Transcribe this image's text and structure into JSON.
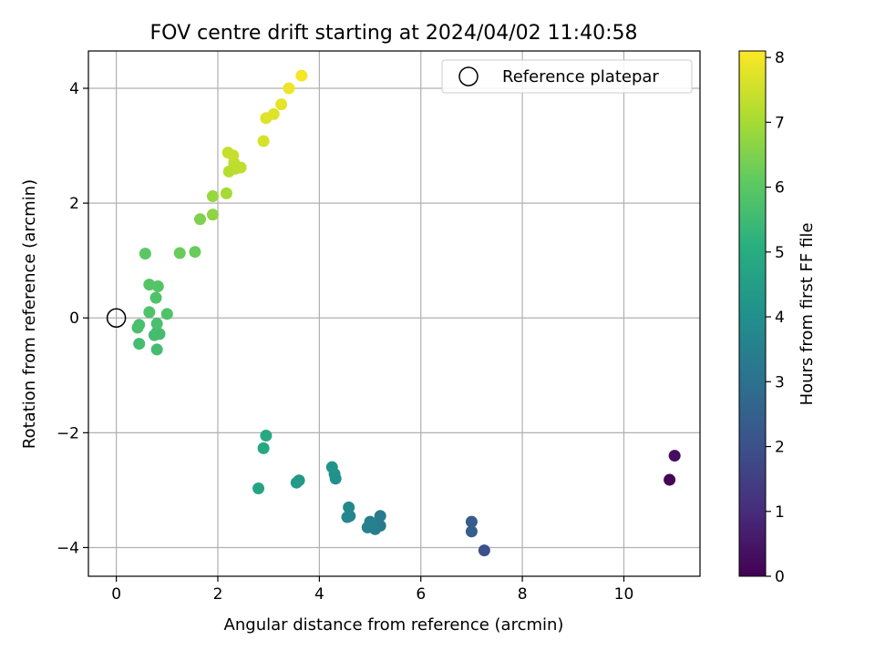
{
  "chart_data": {
    "type": "scatter",
    "title": "FOV centre drift starting at 2024/04/02 11:40:58",
    "xlabel": "Angular distance from reference (arcmin)",
    "ylabel": "Rotation from reference (arcmin)",
    "xlim": [
      -0.55,
      11.5
    ],
    "ylim": [
      -4.5,
      4.65
    ],
    "xticks": [
      0,
      2,
      4,
      6,
      8,
      10
    ],
    "yticks": [
      -4,
      -2,
      0,
      2,
      4
    ],
    "grid": true,
    "legend_placement": "top-right",
    "legend": [
      {
        "label": "Reference platepar",
        "marker": "open-circle"
      }
    ],
    "reference_point": {
      "x": 0,
      "y": 0
    },
    "colorbar": {
      "label": "Hours from first FF file",
      "range": [
        0,
        8.1
      ],
      "ticks": [
        0,
        1,
        2,
        3,
        4,
        5,
        6,
        7,
        8
      ],
      "colormap": "viridis"
    },
    "series": [
      {
        "points": [
          {
            "x": 10.9,
            "y": -2.82,
            "c": 0.1
          },
          {
            "x": 11.0,
            "y": -2.4,
            "c": 0.3
          },
          {
            "x": 7.25,
            "y": -4.05,
            "c": 2.0
          },
          {
            "x": 7.0,
            "y": -3.55,
            "c": 2.3
          },
          {
            "x": 7.0,
            "y": -3.72,
            "c": 2.4
          },
          {
            "x": 5.2,
            "y": -3.45,
            "c": 3.3
          },
          {
            "x": 5.2,
            "y": -3.62,
            "c": 3.3
          },
          {
            "x": 5.1,
            "y": -3.68,
            "c": 3.4
          },
          {
            "x": 5.0,
            "y": -3.55,
            "c": 3.4
          },
          {
            "x": 4.95,
            "y": -3.65,
            "c": 3.5
          },
          {
            "x": 5.05,
            "y": -3.6,
            "c": 3.5
          },
          {
            "x": 4.6,
            "y": -3.45,
            "c": 3.6
          },
          {
            "x": 4.55,
            "y": -3.47,
            "c": 3.7
          },
          {
            "x": 4.58,
            "y": -3.3,
            "c": 3.8
          },
          {
            "x": 4.32,
            "y": -2.8,
            "c": 4.0
          },
          {
            "x": 4.3,
            "y": -2.72,
            "c": 4.1
          },
          {
            "x": 4.25,
            "y": -2.6,
            "c": 4.2
          },
          {
            "x": 3.6,
            "y": -2.83,
            "c": 4.3
          },
          {
            "x": 3.55,
            "y": -2.87,
            "c": 4.4
          },
          {
            "x": 2.8,
            "y": -2.97,
            "c": 4.7
          },
          {
            "x": 2.9,
            "y": -2.27,
            "c": 4.8
          },
          {
            "x": 2.95,
            "y": -2.05,
            "c": 4.9
          },
          {
            "x": 0.8,
            "y": -0.55,
            "c": 5.6
          },
          {
            "x": 0.45,
            "y": -0.45,
            "c": 5.6
          },
          {
            "x": 0.75,
            "y": -0.3,
            "c": 5.6
          },
          {
            "x": 0.85,
            "y": -0.28,
            "c": 5.6
          },
          {
            "x": 0.8,
            "y": -0.25,
            "c": 5.6
          },
          {
            "x": 0.8,
            "y": -0.1,
            "c": 5.7
          },
          {
            "x": 0.42,
            "y": -0.17,
            "c": 5.7
          },
          {
            "x": 0.45,
            "y": -0.12,
            "c": 5.7
          },
          {
            "x": 0.65,
            "y": 0.1,
            "c": 5.8
          },
          {
            "x": 1.0,
            "y": 0.07,
            "c": 5.8
          },
          {
            "x": 0.78,
            "y": 0.35,
            "c": 5.8
          },
          {
            "x": 0.65,
            "y": 0.58,
            "c": 5.9
          },
          {
            "x": 0.82,
            "y": 0.55,
            "c": 5.9
          },
          {
            "x": 0.57,
            "y": 1.12,
            "c": 6.0
          },
          {
            "x": 1.25,
            "y": 1.13,
            "c": 6.2
          },
          {
            "x": 1.55,
            "y": 1.15,
            "c": 6.2
          },
          {
            "x": 1.65,
            "y": 1.72,
            "c": 6.5
          },
          {
            "x": 1.9,
            "y": 1.8,
            "c": 6.7
          },
          {
            "x": 1.9,
            "y": 2.12,
            "c": 6.8
          },
          {
            "x": 2.17,
            "y": 2.17,
            "c": 7.0
          },
          {
            "x": 2.22,
            "y": 2.55,
            "c": 7.2
          },
          {
            "x": 2.35,
            "y": 2.6,
            "c": 7.2
          },
          {
            "x": 2.45,
            "y": 2.62,
            "c": 7.3
          },
          {
            "x": 2.32,
            "y": 2.7,
            "c": 7.3
          },
          {
            "x": 2.3,
            "y": 2.83,
            "c": 7.4
          },
          {
            "x": 2.2,
            "y": 2.88,
            "c": 7.4
          },
          {
            "x": 2.9,
            "y": 3.08,
            "c": 7.6
          },
          {
            "x": 2.95,
            "y": 3.48,
            "c": 7.7
          },
          {
            "x": 3.1,
            "y": 3.55,
            "c": 7.7
          },
          {
            "x": 3.25,
            "y": 3.72,
            "c": 7.8
          },
          {
            "x": 3.4,
            "y": 4.0,
            "c": 7.9
          },
          {
            "x": 3.65,
            "y": 4.22,
            "c": 8.0
          }
        ]
      }
    ]
  }
}
